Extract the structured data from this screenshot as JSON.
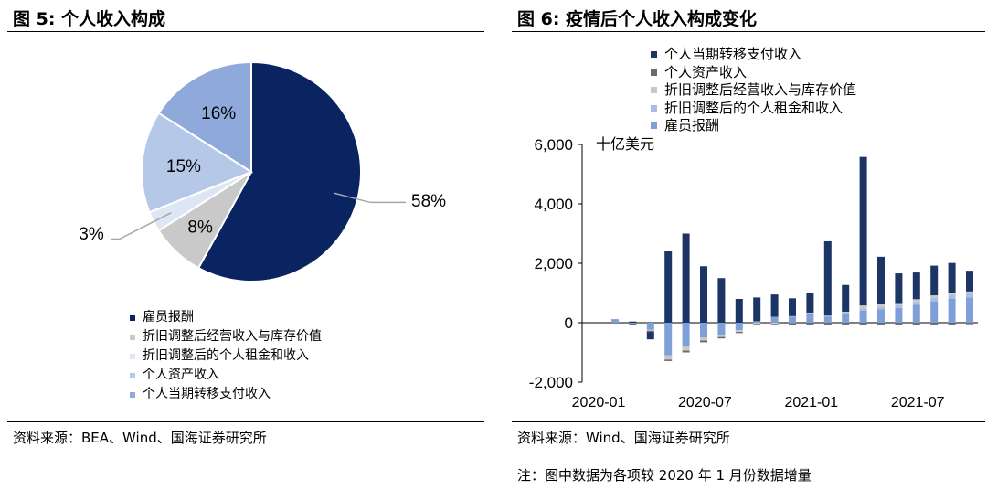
{
  "left_panel": {
    "title": "图 5: 个人收入构成",
    "source": "资料来源：BEA、Wind、国海证券研究所"
  },
  "right_panel": {
    "title": "图 6: 疫情后个人收入构成变化",
    "source": "资料来源：Wind、国海证券研究所",
    "note": "注：图中数据为各项较 2020 年 1 月份数据增量"
  },
  "chart_data": [
    {
      "type": "pie",
      "labels": [
        "雇员报酬",
        "折旧调整后经营收入与库存价值",
        "折旧调整后的个人租金和收入",
        "个人资产收入",
        "个人当期转移支付收入"
      ],
      "values": [
        58,
        8,
        3,
        15,
        16
      ],
      "value_labels": [
        "58%",
        "8%",
        "3%",
        "15%",
        "16%"
      ],
      "colors": [
        "#0a2461",
        "#c9c9c9",
        "#dde6f5",
        "#b6c8e8",
        "#8fa9da"
      ],
      "legend_placement": "bottom"
    },
    {
      "type": "bar",
      "stacked": true,
      "unit_label": "十亿美元",
      "ylim": [
        -2000,
        6000
      ],
      "yticks": [
        "6,000",
        "4,000",
        "2,000",
        "0",
        "-2,000"
      ],
      "ytick_values": [
        6000,
        4000,
        2000,
        0,
        -2000
      ],
      "x_tick_labels": [
        "2020-01",
        "2020-07",
        "2021-01",
        "2021-07"
      ],
      "x_tick_indices": [
        0,
        6,
        12,
        18
      ],
      "legend_placement": "top",
      "categories": [
        "2020-01",
        "2020-02",
        "2020-03",
        "2020-04",
        "2020-05",
        "2020-06",
        "2020-07",
        "2020-08",
        "2020-09",
        "2020-10",
        "2020-11",
        "2020-12",
        "2021-01",
        "2021-02",
        "2021-03",
        "2021-04",
        "2021-05",
        "2021-06",
        "2021-07",
        "2021-08",
        "2021-09"
      ],
      "series": [
        {
          "name": "个人当期转移支付收入",
          "color": "#1c3565",
          "values": [
            0,
            40,
            -250,
            2400,
            3000,
            1900,
            1500,
            800,
            800,
            750,
            600,
            650,
            2500,
            900,
            5000,
            1600,
            1000,
            900,
            1000,
            1000,
            700
          ]
        },
        {
          "name": "个人资产收入",
          "color": "#6b6b6b",
          "values": [
            0,
            -40,
            -40,
            -50,
            -60,
            -60,
            -50,
            -40,
            -40,
            -40,
            -60,
            -60,
            -60,
            -60,
            -60,
            -60,
            -60,
            -60,
            -60,
            -60,
            -50
          ]
        },
        {
          "name": "折旧调整后经营收入与库存价值",
          "color": "#c8c8c8",
          "values": [
            0,
            0,
            -30,
            -140,
            -140,
            -100,
            -80,
            -60,
            -40,
            -40,
            -10,
            0,
            0,
            10,
            100,
            90,
            70,
            90,
            90,
            80,
            50
          ]
        },
        {
          "name": "折旧调整后的个人租金和收入",
          "color": "#a9bde4",
          "values": [
            0,
            0,
            0,
            0,
            0,
            0,
            0,
            0,
            0,
            0,
            20,
            40,
            40,
            60,
            80,
            80,
            90,
            100,
            110,
            130,
            150
          ]
        },
        {
          "name": "雇员报酬",
          "color": "#7f9fd8",
          "values": [
            120,
            -30,
            -240,
            -1100,
            -800,
            -500,
            -400,
            -250,
            50,
            200,
            200,
            300,
            200,
            300,
            400,
            450,
            500,
            600,
            720,
            800,
            850
          ]
        }
      ]
    }
  ]
}
